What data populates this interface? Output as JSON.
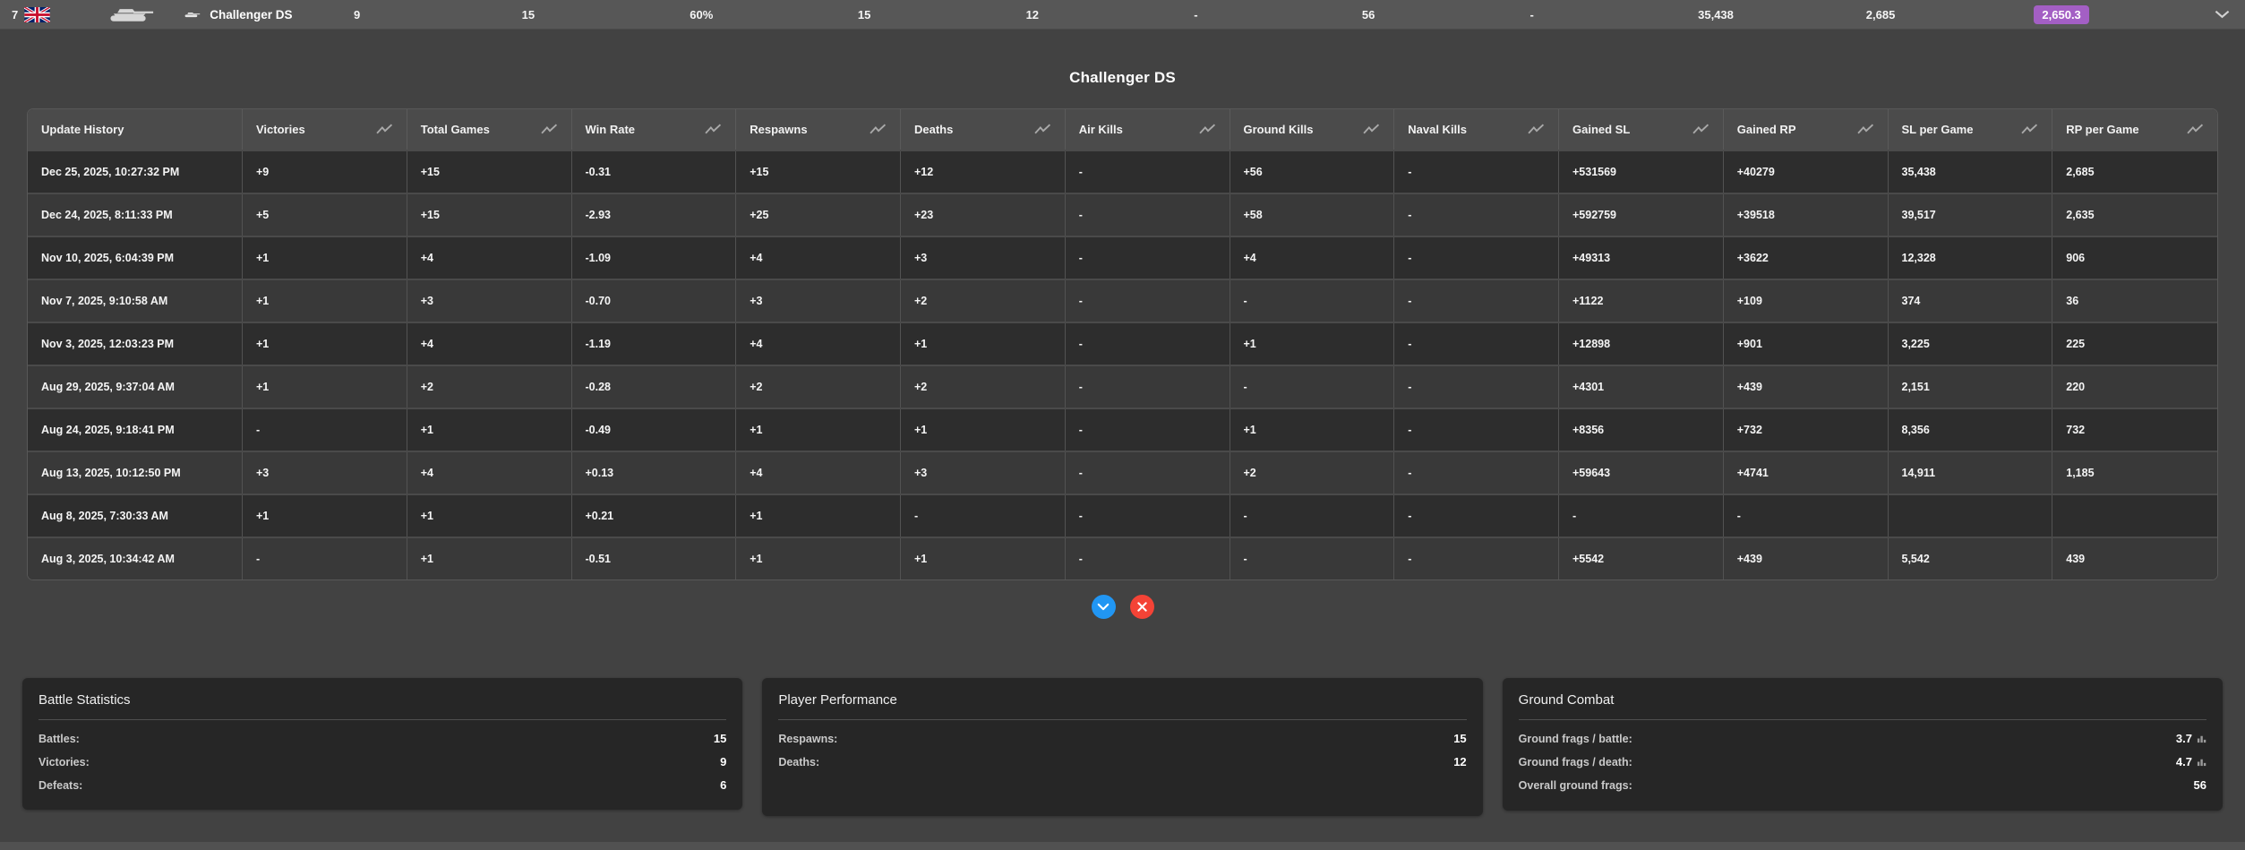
{
  "top_bar": {
    "rank": "7",
    "nation_flag": "united-kingdom",
    "vehicle_name": "Challenger DS",
    "stats": [
      "9",
      "15",
      "60%",
      "15",
      "12",
      "-",
      "56",
      "-",
      "35,438",
      "2,685"
    ],
    "badge_value": "2,650.3"
  },
  "detail": {
    "title": "Challenger DS",
    "table": {
      "columns": [
        "Update History",
        "Victories",
        "Total Games",
        "Win Rate",
        "Respawns",
        "Deaths",
        "Air Kills",
        "Ground Kills",
        "Naval Kills",
        "Gained SL",
        "Gained RP",
        "SL per Game",
        "RP per Game"
      ],
      "rows": [
        [
          "Dec 25, 2025, 10:27:32 PM",
          "+9",
          "+15",
          "-0.31",
          "+15",
          "+12",
          "-",
          "+56",
          "-",
          "+531569",
          "+40279",
          "35,438",
          "2,685"
        ],
        [
          "Dec 24, 2025, 8:11:33 PM",
          "+5",
          "+15",
          "-2.93",
          "+25",
          "+23",
          "-",
          "+58",
          "-",
          "+592759",
          "+39518",
          "39,517",
          "2,635"
        ],
        [
          "Nov 10, 2025, 6:04:39 PM",
          "+1",
          "+4",
          "-1.09",
          "+4",
          "+3",
          "-",
          "+4",
          "-",
          "+49313",
          "+3622",
          "12,328",
          "906"
        ],
        [
          "Nov 7, 2025, 9:10:58 AM",
          "+1",
          "+3",
          "-0.70",
          "+3",
          "+2",
          "-",
          "-",
          "-",
          "+1122",
          "+109",
          "374",
          "36"
        ],
        [
          "Nov 3, 2025, 12:03:23 PM",
          "+1",
          "+4",
          "-1.19",
          "+4",
          "+1",
          "-",
          "+1",
          "-",
          "+12898",
          "+901",
          "3,225",
          "225"
        ],
        [
          "Aug 29, 2025, 9:37:04 AM",
          "+1",
          "+2",
          "-0.28",
          "+2",
          "+2",
          "-",
          "-",
          "-",
          "+4301",
          "+439",
          "2,151",
          "220"
        ],
        [
          "Aug 24, 2025, 9:18:41 PM",
          "-",
          "+1",
          "-0.49",
          "+1",
          "+1",
          "-",
          "+1",
          "-",
          "+8356",
          "+732",
          "8,356",
          "732"
        ],
        [
          "Aug 13, 2025, 10:12:50 PM",
          "+3",
          "+4",
          "+0.13",
          "+4",
          "+3",
          "-",
          "+2",
          "-",
          "+59643",
          "+4741",
          "14,911",
          "1,185"
        ],
        [
          "Aug 8, 2025, 7:30:33 AM",
          "+1",
          "+1",
          "+0.21",
          "+1",
          "-",
          "-",
          "-",
          "-",
          "-",
          "-",
          "",
          ""
        ],
        [
          "Aug 3, 2025, 10:34:42 AM",
          "-",
          "+1",
          "-0.51",
          "+1",
          "+1",
          "-",
          "-",
          "-",
          "+5542",
          "+439",
          "5,542",
          "439"
        ]
      ]
    }
  },
  "panels": [
    {
      "title": "Battle Statistics",
      "rows": [
        {
          "label": "Battles:",
          "value": "15"
        },
        {
          "label": "Victories:",
          "value": "9"
        },
        {
          "label": "Defeats:",
          "value": "6"
        }
      ]
    },
    {
      "title": "Player Performance",
      "rows": [
        {
          "label": "Respawns:",
          "value": "15"
        },
        {
          "label": "Deaths:",
          "value": "12"
        }
      ]
    },
    {
      "title": "Ground Combat",
      "rows": [
        {
          "label": "Ground frags / battle:",
          "value": "3.7",
          "icon": "bar-chart-icon"
        },
        {
          "label": "Ground frags / death:",
          "value": "4.7",
          "icon": "bar-chart-icon"
        },
        {
          "label": "Overall ground frags:",
          "value": "56"
        }
      ]
    }
  ],
  "icons": {
    "nation": "uk-flag-icon",
    "vehicle_class": "tank-icon",
    "vehicle_type": "tank-icon",
    "column_metric": "trend-line-icon",
    "topbar_expand": "chevron-down-icon",
    "confirm_button": "chevron-down-icon",
    "close_button": "x-icon",
    "value_metric": "bar-chart-icon"
  },
  "colors": {
    "page_bg": "#424242",
    "topbar_bg": "#575757",
    "badge_bg": "#a35fc4",
    "confirm_button_bg": "#2196f3",
    "close_button_bg": "#f44336",
    "panel_bg": "#262626",
    "row_dark": "#2d2d2d",
    "row_light": "#393939"
  }
}
